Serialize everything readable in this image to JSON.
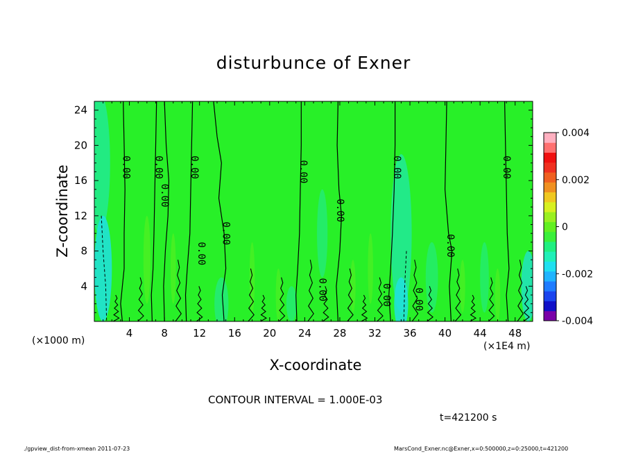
{
  "chart_data": {
    "type": "heatmap",
    "title": "disturbunce of Exner",
    "xlabel": "X-coordinate",
    "ylabel": "Z-coordinate",
    "x_units_label": "(×1000 m)",
    "x_units_label_right": "(×1E4 m)",
    "xlim": [
      0,
      50
    ],
    "ylim": [
      0,
      25
    ],
    "x_ticks": [
      4,
      8,
      12,
      16,
      20,
      24,
      28,
      32,
      36,
      40,
      44,
      48
    ],
    "y_ticks": [
      4,
      8,
      12,
      16,
      20,
      24
    ],
    "colorbar": {
      "range": [
        -0.004,
        0.004
      ],
      "tick_labels": [
        "0.004",
        "0.002",
        "0",
        "-0.002",
        "-0.004"
      ],
      "tick_values": [
        0.004,
        0.002,
        0,
        -0.002,
        -0.004
      ],
      "colors": [
        "#7a00a8",
        "#1010c8",
        "#1a44ee",
        "#1e7cff",
        "#1fb4ff",
        "#1fe0f0",
        "#20f0b8",
        "#20f080",
        "#3af03a",
        "#62f020",
        "#9af020",
        "#d8f020",
        "#f0c820",
        "#f09020",
        "#f06020",
        "#f03020",
        "#f01010",
        "#ff7070",
        "#ffb0c0"
      ]
    },
    "background_value": 0.0004,
    "contour_interval": "1.000E-03",
    "contour_labels": [
      {
        "text": "0.00",
        "x": 3.6,
        "z": 17.5
      },
      {
        "text": "0.00",
        "x": 7.3,
        "z": 17.5
      },
      {
        "text": "0.00",
        "x": 8.0,
        "z": 14.3
      },
      {
        "text": "0.00",
        "x": 11.4,
        "z": 17.5
      },
      {
        "text": "0.00",
        "x": 12.2,
        "z": 7.7
      },
      {
        "text": "0.00",
        "x": 15.0,
        "z": 10.0
      },
      {
        "text": "0.00",
        "x": 23.8,
        "z": 17.0
      },
      {
        "text": "0.00",
        "x": 26.0,
        "z": 3.6
      },
      {
        "text": "0.00",
        "x": 28.0,
        "z": 12.6
      },
      {
        "text": "0.00",
        "x": 34.5,
        "z": 17.5
      },
      {
        "text": "0.00",
        "x": 33.3,
        "z": 3.0
      },
      {
        "text": "0.00",
        "x": 37.0,
        "z": 2.5
      },
      {
        "text": "0.00",
        "x": 40.6,
        "z": 8.6
      },
      {
        "text": "0.00",
        "x": 47.0,
        "z": 17.5
      }
    ]
  },
  "annotations": {
    "contour_interval_text": "CONTOUR INTERVAL = 1.000E-03",
    "time_text": "t=421200 s",
    "footer_left": "./gpview_dist-from-xmean 2011-07-23",
    "footer_right": "MarsCond_Exner.nc@Exner,x=0:500000,z=0:25000,t=421200"
  },
  "colors": {
    "field_base": "#28f028",
    "negative_tint": "#20e8a8",
    "cyan_tint": "#20e0e0",
    "positive_tint": "#5af020"
  }
}
